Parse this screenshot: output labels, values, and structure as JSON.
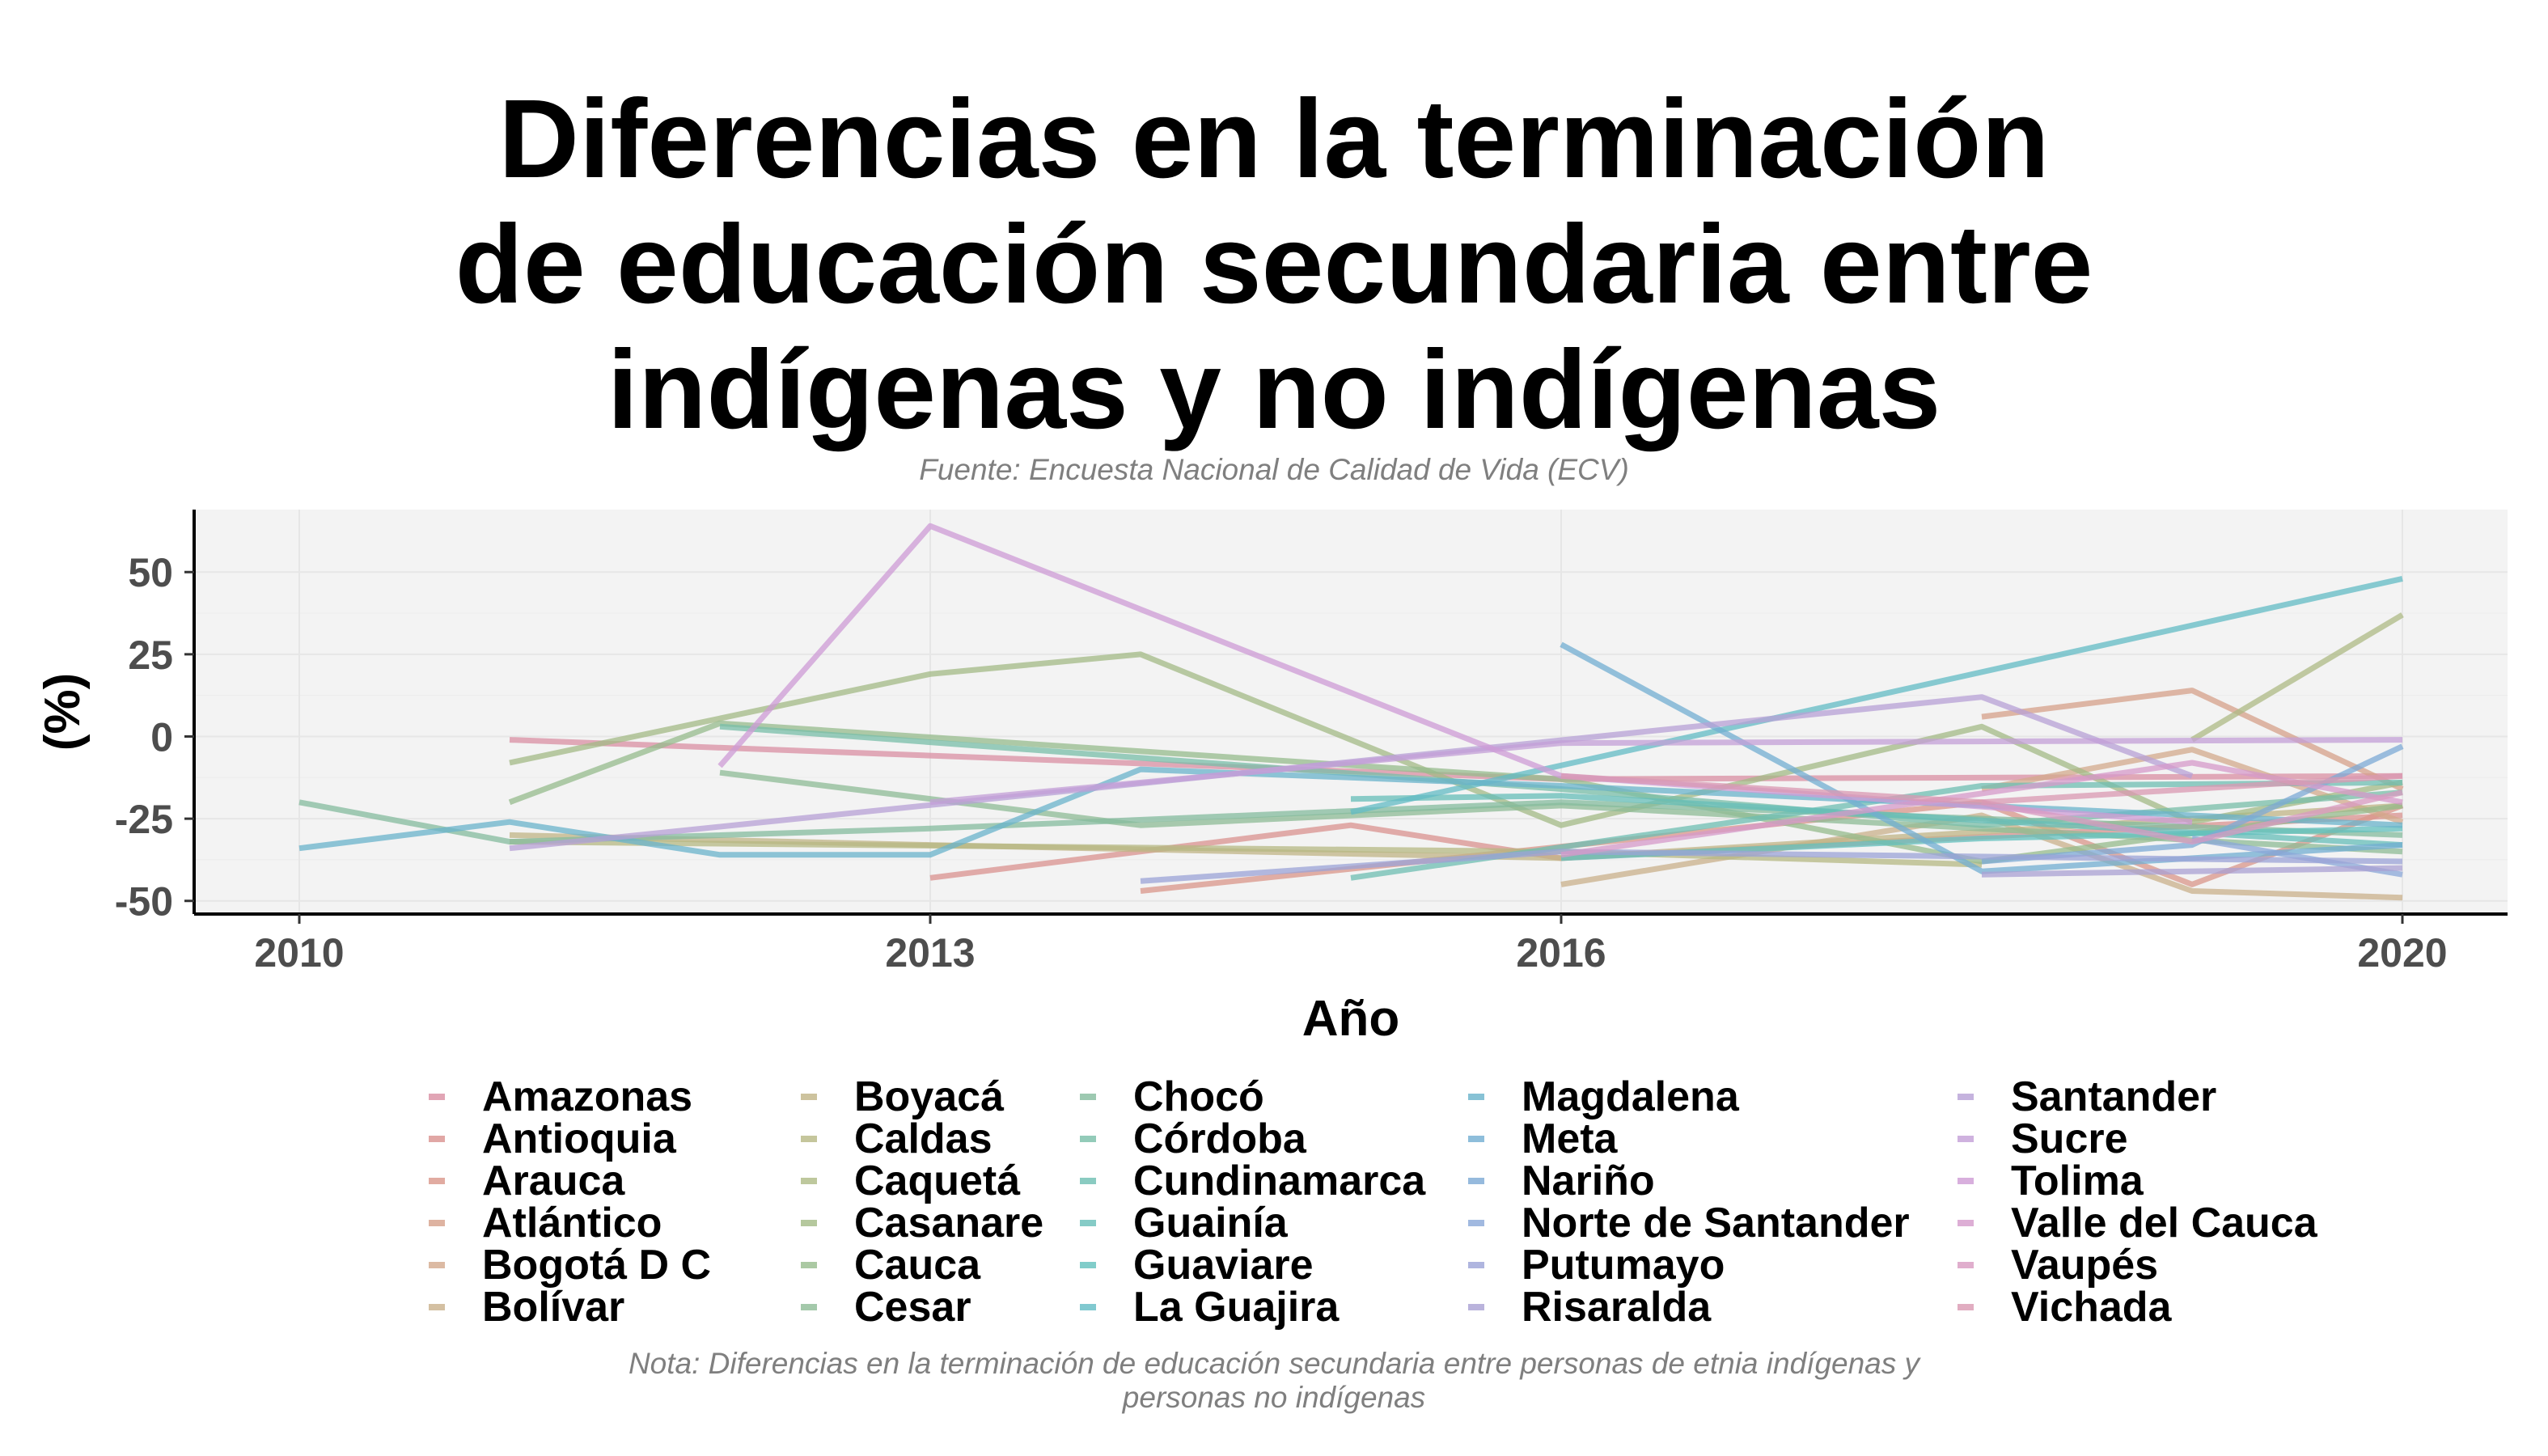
{
  "chart_data": {
    "type": "line",
    "title": [
      "Diferencias en la terminación",
      "de educación secundaria entre",
      "indígenas y no indígenas"
    ],
    "subtitle": "Fuente: Encuesta Nacional de Calidad de Vida (ECV)",
    "xlabel": "Año",
    "ylabel": "(%)",
    "caption": [
      "Nota: Diferencias en la terminación de educación secundaria entre personas de etnia indígenas y",
      "personas no indígenas"
    ],
    "xlim": [
      2009.5,
      2020.5
    ],
    "ylim": [
      -54,
      69
    ],
    "xticks": [
      2010,
      2013,
      2016,
      2020
    ],
    "yticks": [
      -50,
      -25,
      0,
      25,
      50
    ],
    "grid": true,
    "legend_position": "bottom",
    "series": [
      {
        "name": "Amazonas",
        "color": "#D98FA3",
        "x": [
          2011,
          2016,
          2020
        ],
        "y": [
          -1,
          -13,
          -12
        ]
      },
      {
        "name": "Antioquia",
        "color": "#D9918F",
        "x": [
          2013,
          2015,
          2016,
          2020
        ],
        "y": [
          -43,
          -27,
          -37,
          -24
        ]
      },
      {
        "name": "Arauca",
        "color": "#D9968A",
        "x": [
          2014,
          2018,
          2019,
          2020
        ],
        "y": [
          -47,
          -20,
          -45,
          -21
        ]
      },
      {
        "name": "Atlántico",
        "color": "#D6A08A",
        "x": [
          2018,
          2019,
          2020
        ],
        "y": [
          6,
          14,
          -16
        ]
      },
      {
        "name": "Bogotá D C",
        "color": "#D3A98C",
        "x": [
          2018,
          2019,
          2020
        ],
        "y": [
          -16,
          -4,
          -26
        ]
      },
      {
        "name": "Bolívar",
        "color": "#C9B08B",
        "x": [
          2016,
          2018,
          2019,
          2020
        ],
        "y": [
          -45,
          -24,
          -47,
          -49
        ]
      },
      {
        "name": "Boyacá",
        "color": "#C0B486",
        "x": [
          2011,
          2013,
          2016,
          2020
        ],
        "y": [
          -30,
          -33,
          -37,
          -21
        ]
      },
      {
        "name": "Caldas",
        "color": "#B6B883",
        "x": [
          2011,
          2016,
          2018
        ],
        "y": [
          -32,
          -35,
          -39
        ]
      },
      {
        "name": "Caquetá",
        "color": "#AEBA84",
        "x": [
          2019,
          2020
        ],
        "y": [
          -1,
          37
        ]
      },
      {
        "name": "Casanare",
        "color": "#A3BA85",
        "x": [
          2011,
          2013,
          2014,
          2016,
          2018,
          2019,
          2020
        ],
        "y": [
          -8,
          19,
          25,
          -27,
          3,
          -26,
          -14
        ]
      },
      {
        "name": "Cauca",
        "color": "#96BB8C",
        "x": [
          2011,
          2012,
          2016,
          2018,
          2020
        ],
        "y": [
          -20,
          4,
          -13,
          -38,
          -21
        ]
      },
      {
        "name": "Cesar",
        "color": "#8DBB96",
        "x": [
          2012,
          2014,
          2016,
          2020
        ],
        "y": [
          -11,
          -27,
          -21,
          -35
        ]
      },
      {
        "name": "Chocó",
        "color": "#84BB9E",
        "x": [
          2010,
          2011,
          2013,
          2016,
          2020
        ],
        "y": [
          -20,
          -32,
          -28,
          -20,
          -30
        ]
      },
      {
        "name": "Córdoba",
        "color": "#78BEA8",
        "x": [
          2012,
          2016,
          2018,
          2020
        ],
        "y": [
          3,
          -16,
          -27,
          -17
        ]
      },
      {
        "name": "Cundinamarca",
        "color": "#6DBEB2",
        "x": [
          2015,
          2018,
          2020
        ],
        "y": [
          -43,
          -15,
          -14
        ]
      },
      {
        "name": "Guainía",
        "color": "#66BEB8",
        "x": [
          2015,
          2016,
          2020
        ],
        "y": [
          -19,
          -18,
          -33
        ]
      },
      {
        "name": "Guaviare",
        "color": "#62C0BD",
        "x": [
          2016,
          2018,
          2020
        ],
        "y": [
          -37,
          -31,
          -28
        ]
      },
      {
        "name": "La Guajira",
        "color": "#62BBC4",
        "x": [
          2015,
          2020
        ],
        "y": [
          -23,
          48
        ]
      },
      {
        "name": "Magdalena",
        "color": "#69B3CB",
        "x": [
          2010,
          2011,
          2012,
          2013,
          2014,
          2016,
          2020
        ],
        "y": [
          -34,
          -26,
          -36,
          -36,
          -10,
          -15,
          -27
        ]
      },
      {
        "name": "Meta",
        "color": "#72AED2",
        "x": [
          2016,
          2018,
          2020
        ],
        "y": [
          28,
          -41,
          -33
        ]
      },
      {
        "name": "Nariño",
        "color": "#7CA9D5",
        "x": [
          2018,
          2019,
          2020
        ],
        "y": [
          -38,
          -33,
          -3
        ]
      },
      {
        "name": "Norte de Santander",
        "color": "#8AA7D8",
        "x": [
          2019,
          2020
        ],
        "y": [
          -31,
          -42
        ]
      },
      {
        "name": "Putumayo",
        "color": "#9BA3D7",
        "x": [
          2014,
          2016,
          2020
        ],
        "y": [
          -44,
          -35,
          -38
        ]
      },
      {
        "name": "Risaralda",
        "color": "#A9A0D3",
        "x": [
          2018,
          2020
        ],
        "y": [
          -42,
          -40
        ]
      },
      {
        "name": "Santander",
        "color": "#B7A0D6",
        "x": [
          2011,
          2018,
          2019
        ],
        "y": [
          -34,
          12,
          -12
        ]
      },
      {
        "name": "Sucre",
        "color": "#C39FD7",
        "x": [
          2013,
          2016,
          2020
        ],
        "y": [
          -20,
          -2,
          -1
        ]
      },
      {
        "name": "Tolima",
        "color": "#CE9BD5",
        "x": [
          2012,
          2013,
          2016,
          2019
        ],
        "y": [
          -9,
          64,
          -12,
          -26
        ]
      },
      {
        "name": "Valle del Cauca",
        "color": "#D59ACA",
        "x": [
          2016,
          2019,
          2020
        ],
        "y": [
          -36,
          -8,
          -20
        ]
      },
      {
        "name": "Vaupés",
        "color": "#D89AC0",
        "x": [
          2018,
          2019,
          2020
        ],
        "y": [
          -20,
          -32,
          -17
        ]
      },
      {
        "name": "Vichada",
        "color": "#DA98B2",
        "x": [
          2016,
          2018,
          2020
        ],
        "y": [
          -12,
          -20,
          -12
        ]
      }
    ]
  }
}
